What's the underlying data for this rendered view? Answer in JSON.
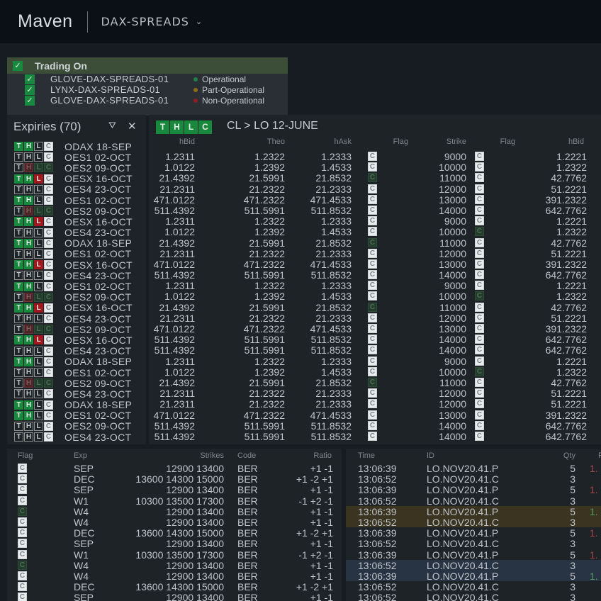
{
  "header": {
    "logo": "Maven",
    "product": "DAX-SPREADS",
    "chevron": "⌄"
  },
  "trading": {
    "label": "Trading On",
    "check": "✓",
    "clients": [
      {
        "name": "GLOVE-DAX-SPREADS-01",
        "status": "Operational",
        "color": "#1f7f48"
      },
      {
        "name": "LYNX-DAX-SPREADS-01",
        "status": "Part-Operational",
        "color": "#8f6d11"
      },
      {
        "name": "GLOVE-DAX-SPREADS-01",
        "status": "Non-Operational",
        "color": "#8f1d22"
      }
    ]
  },
  "expiries": {
    "title": "Expiries (70)",
    "filter_icon": "⛛",
    "close_icon": "✕",
    "rows": [
      {
        "b": "ggwf",
        "n": "ODAX 18-SEP"
      },
      {
        "b": "wwwf",
        "n": "OES1 02-OCT"
      },
      {
        "b": "wpll",
        "n": "OES2 09-OCT"
      },
      {
        "b": "ggrf",
        "n": "OESX 16-OCT"
      },
      {
        "b": "wwwf",
        "n": "OES4 23-OCT"
      },
      {
        "b": "ggwf",
        "n": "OES1 02-OCT"
      },
      {
        "b": "wpll",
        "n": "OES2 09-OCT"
      },
      {
        "b": "ggrf",
        "n": "OESX 16-OCT"
      },
      {
        "b": "wwwf",
        "n": "OES4 23-OCT"
      },
      {
        "b": "ggwf",
        "n": "ODAX 18-SEP"
      },
      {
        "b": "wwwf",
        "n": "OES1 02-OCT"
      },
      {
        "b": "ggrf",
        "n": "OESX 16-OCT"
      },
      {
        "b": "wwwf",
        "n": "OES4 23-OCT"
      },
      {
        "b": "ggwf",
        "n": "OES1 02-OCT"
      },
      {
        "b": "wpll",
        "n": "OES2 09-OCT"
      },
      {
        "b": "ggrf",
        "n": "OESX 16-OCT"
      },
      {
        "b": "wwwf",
        "n": "OES4 23-OCT"
      },
      {
        "b": "wpll",
        "n": "OES2 09-OCT"
      },
      {
        "b": "ggrf",
        "n": "OESX 16-OCT"
      },
      {
        "b": "wwwf",
        "n": "OES4 23-OCT"
      },
      {
        "b": "ggwf",
        "n": "ODAX 18-SEP"
      },
      {
        "b": "wwwf",
        "n": "OES1 02-OCT"
      },
      {
        "b": "wpll",
        "n": "OES2 09-OCT"
      },
      {
        "b": "wwwf",
        "n": "OES4 23-OCT"
      },
      {
        "b": "ggwf",
        "n": "ODAX 18-SEP"
      },
      {
        "b": "ggwf",
        "n": "OES1 02-OCT"
      },
      {
        "b": "wwwf",
        "n": "OES2 09-OCT"
      },
      {
        "b": "wwwf",
        "n": "OES4 23-OCT"
      }
    ]
  },
  "main": {
    "heading_badge": "gggg",
    "breadcrumb": "CL > LO 12-JUNE",
    "columns": [
      "hBid",
      "Theo",
      "hAsk",
      "Flag",
      "Strike",
      "Flag",
      "hBid"
    ],
    "rows": [
      {
        "hbid": "1.2311",
        "theo": "1.2322",
        "hask": "1.2333",
        "f1": "ggwf",
        "strike": "9000",
        "f2": "ggrf",
        "hbid2": "1.2221"
      },
      {
        "hbid": "1.0122",
        "theo": "1.2392",
        "hask": "1.4533",
        "f1": "wwwf",
        "strike": "10000",
        "f2": "wwwf",
        "hbid2": "1.2322"
      },
      {
        "hbid": "21.4392",
        "theo": "21.5991",
        "hask": "21.8532",
        "f1": "wpll",
        "strike": "11000",
        "f2": "wwwf",
        "hbid2": "42.7762"
      },
      {
        "hbid": "21.2311",
        "theo": "21.2322",
        "hask": "21.2333",
        "f1": "ggrf",
        "strike": "12000",
        "f2": "wwwf",
        "hbid2": "51.2221"
      },
      {
        "hbid": "471.0122",
        "theo": "471.2322",
        "hask": "471.4533",
        "f1": "ggwf",
        "strike": "13000",
        "f2": "ggwf",
        "hbid2": "391.2322"
      },
      {
        "hbid": "511.4392",
        "theo": "511.5991",
        "hask": "511.8532",
        "f1": "ggwf",
        "strike": "14000",
        "f2": "ggwf",
        "hbid2": "642.7762"
      },
      {
        "hbid": "1.2311",
        "theo": "1.2322",
        "hask": "1.2333",
        "f1": "ggwf",
        "strike": "9000",
        "f2": "ggrf",
        "hbid2": "1.2221"
      },
      {
        "hbid": "1.0122",
        "theo": "1.2392",
        "hask": "1.4533",
        "f1": "wwwf",
        "strike": "10000",
        "f2": "wpll",
        "hbid2": "1.2322"
      },
      {
        "hbid": "21.4392",
        "theo": "21.5991",
        "hask": "21.8532",
        "f1": "wpll",
        "strike": "11000",
        "f2": "wwwf",
        "hbid2": "42.7762"
      },
      {
        "hbid": "21.2311",
        "theo": "21.2322",
        "hask": "21.2333",
        "f1": "ggrf",
        "strike": "12000",
        "f2": "wwwf",
        "hbid2": "51.2221"
      },
      {
        "hbid": "471.0122",
        "theo": "471.2322",
        "hask": "471.4533",
        "f1": "ggwf",
        "strike": "13000",
        "f2": "ggwf",
        "hbid2": "391.2322"
      },
      {
        "hbid": "511.4392",
        "theo": "511.5991",
        "hask": "511.8532",
        "f1": "ggwf",
        "strike": "14000",
        "f2": "ggwf",
        "hbid2": "642.7762"
      },
      {
        "hbid": "1.2311",
        "theo": "1.2322",
        "hask": "1.2333",
        "f1": "ggwf",
        "strike": "9000",
        "f2": "ggrf",
        "hbid2": "1.2221"
      },
      {
        "hbid": "1.0122",
        "theo": "1.2392",
        "hask": "1.4533",
        "f1": "wwwf",
        "strike": "10000",
        "f2": "wpll",
        "hbid2": "1.2322"
      },
      {
        "hbid": "21.4392",
        "theo": "21.5991",
        "hask": "21.8532",
        "f1": "wpll",
        "strike": "11000",
        "f2": "ggwf",
        "hbid2": "42.7762"
      },
      {
        "hbid": "21.2311",
        "theo": "21.2322",
        "hask": "21.2333",
        "f1": "ggrf",
        "strike": "12000",
        "f2": "ggwf",
        "hbid2": "51.2221"
      },
      {
        "hbid": "471.0122",
        "theo": "471.2322",
        "hask": "471.4533",
        "f1": "ggwf",
        "strike": "13000",
        "f2": "ggwf",
        "hbid2": "391.2322"
      },
      {
        "hbid": "511.4392",
        "theo": "511.5991",
        "hask": "511.8532",
        "f1": "ggwf",
        "strike": "14000",
        "f2": "ggwf",
        "hbid2": "642.7762"
      },
      {
        "hbid": "511.4392",
        "theo": "511.5991",
        "hask": "511.8532",
        "f1": "ggwf",
        "strike": "14000",
        "f2": "ggwf",
        "hbid2": "642.7762"
      },
      {
        "hbid": "1.2311",
        "theo": "1.2322",
        "hask": "1.2333",
        "f1": "ggwf",
        "strike": "9000",
        "f2": "ggrf",
        "hbid2": "1.2221"
      },
      {
        "hbid": "1.0122",
        "theo": "1.2392",
        "hask": "1.4533",
        "f1": "wwwf",
        "strike": "10000",
        "f2": "wpll",
        "hbid2": "1.2322"
      },
      {
        "hbid": "21.4392",
        "theo": "21.5991",
        "hask": "21.8532",
        "f1": "wpll",
        "strike": "11000",
        "f2": "wwwf",
        "hbid2": "42.7762"
      },
      {
        "hbid": "21.2311",
        "theo": "21.2322",
        "hask": "21.2333",
        "f1": "ggrf",
        "strike": "12000",
        "f2": "wwwf",
        "hbid2": "51.2221"
      },
      {
        "hbid": "21.2311",
        "theo": "21.2322",
        "hask": "21.2333",
        "f1": "ggrf",
        "strike": "12000",
        "f2": "wwwf",
        "hbid2": "51.2221"
      },
      {
        "hbid": "471.0122",
        "theo": "471.2322",
        "hask": "471.4533",
        "f1": "ggwf",
        "strike": "13000",
        "f2": "ggwf",
        "hbid2": "391.2322"
      },
      {
        "hbid": "511.4392",
        "theo": "511.5991",
        "hask": "511.8532",
        "f1": "ggwf",
        "strike": "14000",
        "f2": "ggwf",
        "hbid2": "642.7762"
      },
      {
        "hbid": "511.4392",
        "theo": "511.5991",
        "hask": "511.8532",
        "f1": "ggwf",
        "strike": "14000",
        "f2": "ggwf",
        "hbid2": "642.7762"
      }
    ]
  },
  "strategies": {
    "columns": [
      "Flag",
      "Exp",
      "Strikes",
      "Code",
      "Ratio"
    ],
    "rows": [
      {
        "b": "wwwf",
        "exp": "SEP",
        "strikes": "12900 13400",
        "code": "BER",
        "ratio": "+1 -1"
      },
      {
        "b": "ggwf",
        "exp": "DEC",
        "strikes": "13600 14300 15000",
        "code": "BER",
        "ratio": "+1 -2 +1"
      },
      {
        "b": "wwwf",
        "exp": "SEP",
        "strikes": "12900 13400",
        "code": "BER",
        "ratio": "+1 -1"
      },
      {
        "b": "ggrf",
        "exp": "W1",
        "strikes": "10300 13500 17300",
        "code": "BER",
        "ratio": "-1 +2 -1"
      },
      {
        "b": "wpll",
        "exp": "W4",
        "strikes": "12900 13400",
        "code": "BER",
        "ratio": "+1 -1"
      },
      {
        "b": "wwwf",
        "exp": "W4",
        "strikes": "12900 13400",
        "code": "BER",
        "ratio": "+1 -1"
      },
      {
        "b": "ggwf",
        "exp": "DEC",
        "strikes": "13600 14300 15000",
        "code": "BER",
        "ratio": "+1 -2 +1"
      },
      {
        "b": "wwwf",
        "exp": "SEP",
        "strikes": "12900 13400",
        "code": "BER",
        "ratio": "+1 -1"
      },
      {
        "b": "ggrf",
        "exp": "W1",
        "strikes": "10300 13500 17300",
        "code": "BER",
        "ratio": "-1 +2 -1"
      },
      {
        "b": "wpll",
        "exp": "W4",
        "strikes": "12900 13400",
        "code": "BER",
        "ratio": "+1 -1"
      },
      {
        "b": "wwwf",
        "exp": "W4",
        "strikes": "12900 13400",
        "code": "BER",
        "ratio": "+1 -1"
      },
      {
        "b": "ggwf",
        "exp": "DEC",
        "strikes": "13600 14300 15000",
        "code": "BER",
        "ratio": "+1 -2 +1"
      },
      {
        "b": "wwwf",
        "exp": "SEP",
        "strikes": "12900 13400",
        "code": "BER",
        "ratio": "+1 -1"
      }
    ]
  },
  "trades": {
    "columns": [
      "Time",
      "ID",
      "Qty",
      "P"
    ],
    "rows": [
      {
        "time": "13:06:39",
        "id": "LO.NOV20.41.P",
        "qty": "5",
        "p": "1.",
        "t": "up",
        "hl": ""
      },
      {
        "time": "13:06:52",
        "id": "LO.NOV20.41.C",
        "qty": "3",
        "p": "",
        "t": "",
        "hl": ""
      },
      {
        "time": "13:06:39",
        "id": "LO.NOV20.41.P",
        "qty": "5",
        "p": "1.",
        "t": "up",
        "hl": ""
      },
      {
        "time": "13:06:52",
        "id": "LO.NOV20.41.C",
        "qty": "3",
        "p": "",
        "t": "",
        "hl": ""
      },
      {
        "time": "13:06:39",
        "id": "LO.NOV20.41.P",
        "qty": "5",
        "p": "1.",
        "t": "dn",
        "hl": "hy"
      },
      {
        "time": "13:06:52",
        "id": "LO.NOV20.41.C",
        "qty": "3",
        "p": "",
        "t": "",
        "hl": "hy"
      },
      {
        "time": "13:06:39",
        "id": "LO.NOV20.41.P",
        "qty": "5",
        "p": "1.",
        "t": "up",
        "hl": ""
      },
      {
        "time": "13:06:52",
        "id": "LO.NOV20.41.C",
        "qty": "3",
        "p": "",
        "t": "",
        "hl": ""
      },
      {
        "time": "13:06:39",
        "id": "LO.NOV20.41.P",
        "qty": "5",
        "p": "1.",
        "t": "up",
        "hl": ""
      },
      {
        "time": "13:06:52",
        "id": "LO.NOV20.41.C",
        "qty": "3",
        "p": "",
        "t": "",
        "hl": "hb"
      },
      {
        "time": "13:06:39",
        "id": "LO.NOV20.41.P",
        "qty": "5",
        "p": "1.",
        "t": "dn",
        "hl": "hb"
      },
      {
        "time": "13:06:52",
        "id": "LO.NOV20.41.C",
        "qty": "3",
        "p": "",
        "t": "",
        "hl": ""
      },
      {
        "time": "13:06:52",
        "id": "LO.NOV20.41.C",
        "qty": "3",
        "p": "",
        "t": "",
        "hl": ""
      }
    ]
  }
}
